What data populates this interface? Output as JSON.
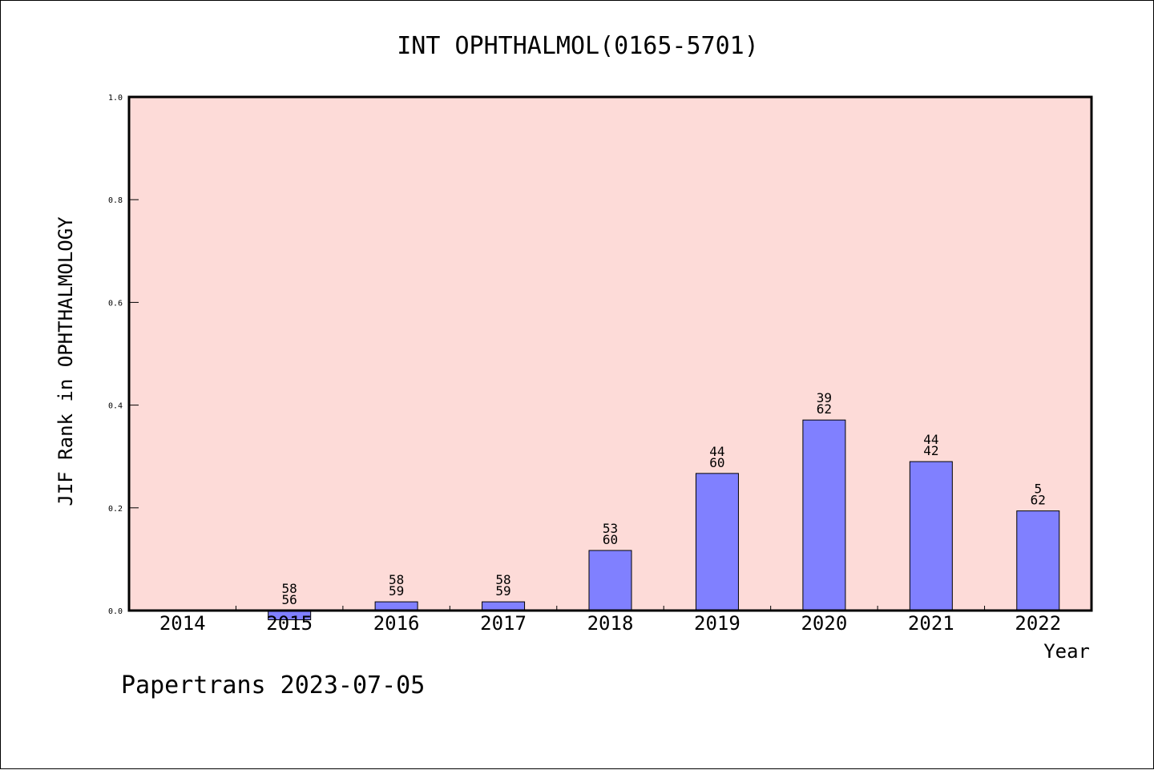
{
  "chart_data": {
    "type": "bar",
    "title": "INT OPHTHALMOL(0165-5701)",
    "xlabel": "Year",
    "ylabel": "JIF Rank in OPHTHALMOLOGY",
    "ylim": [
      0,
      1.0
    ],
    "yticks": [
      "0.0",
      "0.2",
      "0.4",
      "0.6",
      "0.8",
      "1.0"
    ],
    "categories": [
      "2014",
      "2015",
      "2016",
      "2017",
      "2018",
      "2019",
      "2020",
      "2021",
      "2022"
    ],
    "values": [
      null,
      -0.018,
      0.017,
      0.017,
      0.117,
      0.267,
      0.371,
      0.29,
      0.194
    ],
    "rank_labels": [
      null,
      "58",
      "58",
      "58",
      "53",
      "44",
      "39",
      "44",
      "5"
    ],
    "total_labels": [
      null,
      "56",
      "59",
      "59",
      "60",
      "60",
      "62",
      "42",
      "62"
    ],
    "bar_color": "#8080ff",
    "plot_background": "#fddbd8",
    "grid": false,
    "legend": "none"
  },
  "footer": "Papertrans 2023-07-05"
}
